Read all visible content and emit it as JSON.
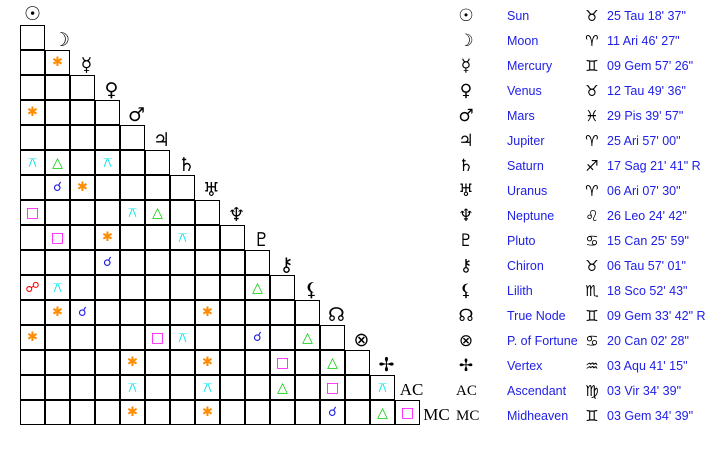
{
  "colors": {
    "conjunction": "#1a1ae6",
    "opposition": "#ff0000",
    "sextile": "#ff8c00",
    "square": "#ff00ff",
    "trine": "#00cc00",
    "quincunx": "#00e5e5",
    "text": "#2020e8"
  },
  "aspect_glyphs": {
    "conjunction": "☌",
    "opposition": "☍",
    "sextile": "✱",
    "square": "□",
    "trine": "△",
    "quincunx": "⚻"
  },
  "planets": [
    {
      "name": "Sun",
      "glyph": "☉",
      "sign_glyph": "♉",
      "position": "25 Tau 18' 37\""
    },
    {
      "name": "Moon",
      "glyph": "☽",
      "sign_glyph": "♈",
      "position": "11 Ari 46' 27\""
    },
    {
      "name": "Mercury",
      "glyph": "☿",
      "sign_glyph": "♊",
      "position": "09 Gem 57' 26\""
    },
    {
      "name": "Venus",
      "glyph": "♀",
      "sign_glyph": "♉",
      "position": "12 Tau 49' 36\""
    },
    {
      "name": "Mars",
      "glyph": "♂",
      "sign_glyph": "♓",
      "position": "29 Pis 39' 57\""
    },
    {
      "name": "Jupiter",
      "glyph": "♃",
      "sign_glyph": "♈",
      "position": "25 Ari 57' 00\""
    },
    {
      "name": "Saturn",
      "glyph": "♄",
      "sign_glyph": "♐",
      "position": "17 Sag 21' 41\" R"
    },
    {
      "name": "Uranus",
      "glyph": "♅",
      "sign_glyph": "♈",
      "position": "06 Ari 07' 30\""
    },
    {
      "name": "Neptune",
      "glyph": "♆",
      "sign_glyph": "♌",
      "position": "26 Leo 24' 42\""
    },
    {
      "name": "Pluto",
      "glyph": "♇",
      "sign_glyph": "♋",
      "position": "15 Can 25' 59\""
    },
    {
      "name": "Chiron",
      "glyph": "⚷",
      "sign_glyph": "♉",
      "position": "06 Tau 57' 01\""
    },
    {
      "name": "Lilith",
      "glyph": "⚸",
      "sign_glyph": "♏",
      "position": "18 Sco 52' 43\""
    },
    {
      "name": "True Node",
      "glyph": "☊",
      "sign_glyph": "♊",
      "position": "09 Gem 33' 42\" R"
    },
    {
      "name": "P. of Fortune",
      "glyph": "⊗",
      "sign_glyph": "♋",
      "position": "20 Can 02' 28\""
    },
    {
      "name": "Vertex",
      "glyph": "✢",
      "sign_glyph": "♒",
      "position": "03 Aqu 41' 15\""
    },
    {
      "name": "Ascendant",
      "glyph": "AC",
      "sign_glyph": "♍",
      "position": "03 Vir 34' 39\""
    },
    {
      "name": "Midheaven",
      "glyph": "MC",
      "sign_glyph": "♊",
      "position": "03 Gem 34' 39\""
    }
  ],
  "aspects": [
    {
      "a": 2,
      "b": 1,
      "type": "sextile"
    },
    {
      "a": 4,
      "b": 0,
      "type": "sextile"
    },
    {
      "a": 6,
      "b": 0,
      "type": "quincunx"
    },
    {
      "a": 6,
      "b": 1,
      "type": "trine"
    },
    {
      "a": 6,
      "b": 3,
      "type": "quincunx"
    },
    {
      "a": 7,
      "b": 1,
      "type": "conjunction"
    },
    {
      "a": 7,
      "b": 2,
      "type": "sextile"
    },
    {
      "a": 8,
      "b": 0,
      "type": "square"
    },
    {
      "a": 8,
      "b": 4,
      "type": "quincunx"
    },
    {
      "a": 8,
      "b": 5,
      "type": "trine"
    },
    {
      "a": 9,
      "b": 1,
      "type": "square"
    },
    {
      "a": 9,
      "b": 3,
      "type": "sextile"
    },
    {
      "a": 9,
      "b": 6,
      "type": "quincunx"
    },
    {
      "a": 10,
      "b": 3,
      "type": "conjunction"
    },
    {
      "a": 11,
      "b": 0,
      "type": "opposition"
    },
    {
      "a": 11,
      "b": 1,
      "type": "quincunx"
    },
    {
      "a": 11,
      "b": 9,
      "type": "trine"
    },
    {
      "a": 12,
      "b": 1,
      "type": "sextile"
    },
    {
      "a": 12,
      "b": 2,
      "type": "conjunction"
    },
    {
      "a": 12,
      "b": 7,
      "type": "sextile"
    },
    {
      "a": 13,
      "b": 0,
      "type": "sextile"
    },
    {
      "a": 13,
      "b": 5,
      "type": "square"
    },
    {
      "a": 13,
      "b": 6,
      "type": "quincunx"
    },
    {
      "a": 13,
      "b": 9,
      "type": "conjunction"
    },
    {
      "a": 13,
      "b": 11,
      "type": "trine"
    },
    {
      "a": 14,
      "b": 4,
      "type": "sextile"
    },
    {
      "a": 14,
      "b": 7,
      "type": "sextile"
    },
    {
      "a": 14,
      "b": 10,
      "type": "square"
    },
    {
      "a": 14,
      "b": 12,
      "type": "trine"
    },
    {
      "a": 15,
      "b": 4,
      "type": "quincunx"
    },
    {
      "a": 15,
      "b": 7,
      "type": "quincunx"
    },
    {
      "a": 15,
      "b": 10,
      "type": "trine"
    },
    {
      "a": 15,
      "b": 12,
      "type": "square"
    },
    {
      "a": 15,
      "b": 14,
      "type": "quincunx"
    },
    {
      "a": 16,
      "b": 4,
      "type": "sextile"
    },
    {
      "a": 16,
      "b": 7,
      "type": "sextile"
    },
    {
      "a": 16,
      "b": 12,
      "type": "conjunction"
    },
    {
      "a": 16,
      "b": 14,
      "type": "trine"
    },
    {
      "a": 16,
      "b": 15,
      "type": "square"
    }
  ]
}
